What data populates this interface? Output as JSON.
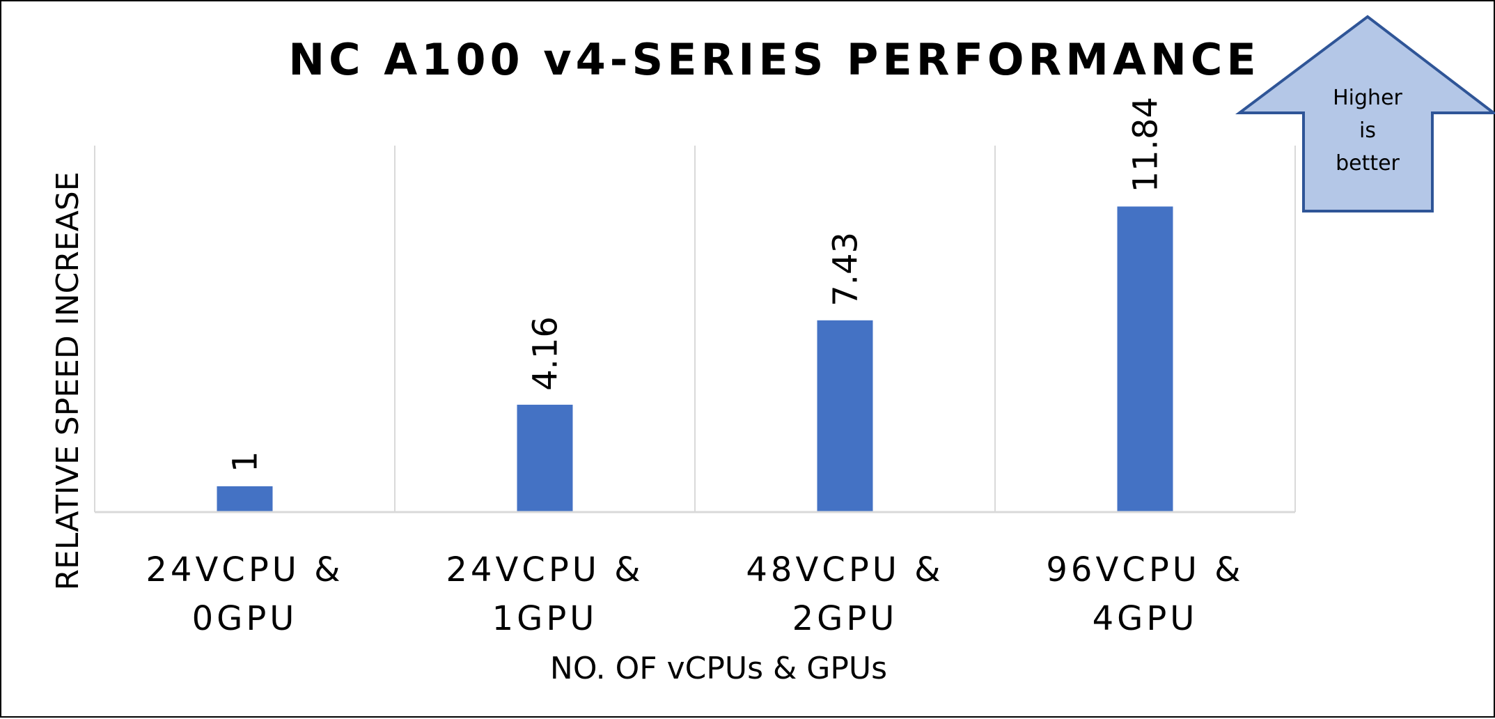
{
  "chart_data": {
    "type": "bar",
    "title": "NC A100 v4-SERIES PERFORMANCE",
    "xlabel": "NO. OF vCPUs & GPUs",
    "ylabel": "RELATIVE SPEED INCREASE",
    "categories": [
      [
        "24VCPU &",
        "0GPU"
      ],
      [
        "24VCPU &",
        "1GPU"
      ],
      [
        "48VCPU &",
        "2GPU"
      ],
      [
        "96VCPU &",
        "4GPU"
      ]
    ],
    "values": [
      1,
      4.16,
      7.43,
      11.84
    ],
    "data_labels": [
      "1",
      "4.16",
      "7.43",
      "11.84"
    ],
    "ylim": [
      0,
      14.2
    ],
    "grid": "vertical category separators",
    "bar_color": "#4472C4",
    "annotation": {
      "lines": [
        "Higher",
        "is",
        "better"
      ],
      "shape": "up-arrow",
      "fill": "#B4C7E7",
      "stroke": "#2F5597"
    }
  }
}
